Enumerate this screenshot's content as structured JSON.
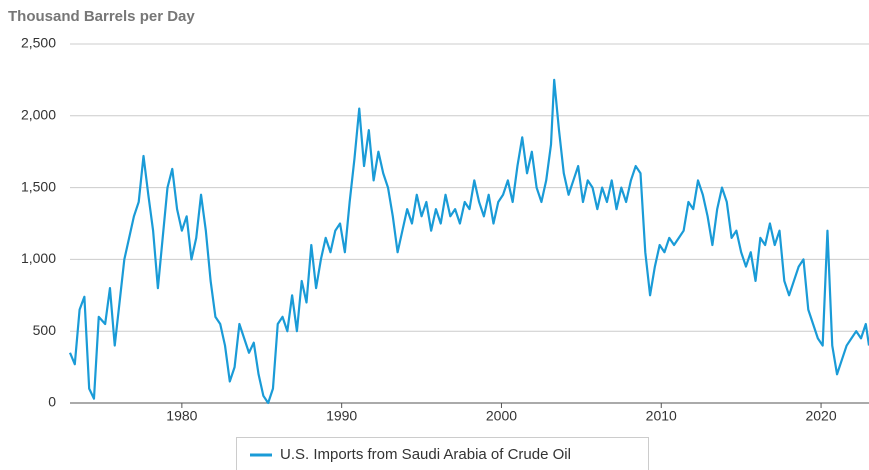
{
  "chart_data": {
    "type": "line",
    "title": "Thousand Barrels per Day",
    "x": [
      1973.0,
      1973.3,
      1973.6,
      1973.9,
      1974.2,
      1974.5,
      1974.8,
      1975.2,
      1975.5,
      1975.8,
      1976.1,
      1976.4,
      1976.7,
      1977.0,
      1977.3,
      1977.6,
      1977.9,
      1978.2,
      1978.5,
      1978.8,
      1979.1,
      1979.4,
      1979.7,
      1980.0,
      1980.3,
      1980.6,
      1980.9,
      1981.2,
      1981.5,
      1981.8,
      1982.1,
      1982.4,
      1982.7,
      1983.0,
      1983.3,
      1983.6,
      1983.9,
      1984.2,
      1984.5,
      1984.8,
      1985.1,
      1985.4,
      1985.7,
      1986.0,
      1986.3,
      1986.6,
      1986.9,
      1987.2,
      1987.5,
      1987.8,
      1988.1,
      1988.4,
      1988.7,
      1989.0,
      1989.3,
      1989.6,
      1989.9,
      1990.2,
      1990.5,
      1990.8,
      1991.1,
      1991.4,
      1991.7,
      1992.0,
      1992.3,
      1992.6,
      1992.9,
      1993.2,
      1993.5,
      1993.8,
      1994.1,
      1994.4,
      1994.7,
      1995.0,
      1995.3,
      1995.6,
      1995.9,
      1996.2,
      1996.5,
      1996.8,
      1997.1,
      1997.4,
      1997.7,
      1998.0,
      1998.3,
      1998.6,
      1998.9,
      1999.2,
      1999.5,
      1999.8,
      2000.1,
      2000.4,
      2000.7,
      2001.0,
      2001.3,
      2001.6,
      2001.9,
      2002.2,
      2002.5,
      2002.8,
      2003.1,
      2003.3,
      2003.6,
      2003.9,
      2004.2,
      2004.5,
      2004.8,
      2005.1,
      2005.4,
      2005.7,
      2006.0,
      2006.3,
      2006.6,
      2006.9,
      2007.2,
      2007.5,
      2007.8,
      2008.1,
      2008.4,
      2008.7,
      2009.0,
      2009.3,
      2009.6,
      2009.9,
      2010.2,
      2010.5,
      2010.8,
      2011.1,
      2011.4,
      2011.7,
      2012.0,
      2012.3,
      2012.6,
      2012.9,
      2013.2,
      2013.5,
      2013.8,
      2014.1,
      2014.4,
      2014.7,
      2015.0,
      2015.3,
      2015.6,
      2015.9,
      2016.2,
      2016.5,
      2016.8,
      2017.1,
      2017.4,
      2017.7,
      2018.0,
      2018.3,
      2018.6,
      2018.9,
      2019.2,
      2019.5,
      2019.8,
      2020.1,
      2020.4,
      2020.7,
      2021.0,
      2021.3,
      2021.6,
      2021.9,
      2022.2,
      2022.5,
      2022.8,
      2023.0
    ],
    "series": [
      {
        "name": "U.S. Imports from Saudi Arabia of Crude Oil",
        "color": "#1a9bd7",
        "values": [
          350,
          270,
          650,
          740,
          100,
          30,
          600,
          550,
          800,
          400,
          700,
          1000,
          1150,
          1300,
          1400,
          1720,
          1450,
          1200,
          800,
          1150,
          1500,
          1630,
          1350,
          1200,
          1300,
          1000,
          1150,
          1450,
          1200,
          850,
          600,
          550,
          400,
          150,
          250,
          550,
          450,
          350,
          420,
          200,
          50,
          0,
          100,
          550,
          600,
          500,
          750,
          500,
          850,
          700,
          1100,
          800,
          1000,
          1150,
          1050,
          1200,
          1250,
          1050,
          1400,
          1700,
          2050,
          1650,
          1900,
          1550,
          1750,
          1600,
          1500,
          1300,
          1050,
          1200,
          1350,
          1250,
          1450,
          1300,
          1400,
          1200,
          1350,
          1250,
          1450,
          1300,
          1350,
          1250,
          1400,
          1350,
          1550,
          1400,
          1300,
          1450,
          1250,
          1400,
          1450,
          1550,
          1400,
          1650,
          1850,
          1600,
          1750,
          1500,
          1400,
          1550,
          1800,
          2250,
          1900,
          1600,
          1450,
          1550,
          1650,
          1400,
          1550,
          1500,
          1350,
          1500,
          1400,
          1550,
          1350,
          1500,
          1400,
          1550,
          1650,
          1600,
          1050,
          750,
          950,
          1100,
          1050,
          1150,
          1100,
          1150,
          1200,
          1400,
          1350,
          1550,
          1450,
          1300,
          1100,
          1350,
          1500,
          1400,
          1150,
          1200,
          1050,
          950,
          1050,
          850,
          1150,
          1100,
          1250,
          1100,
          1200,
          850,
          750,
          850,
          950,
          1000,
          650,
          550,
          450,
          400,
          1200,
          400,
          200,
          300,
          400,
          450,
          500,
          450,
          550,
          400
        ]
      }
    ],
    "xlim": [
      1973,
      2023
    ],
    "xticks": [
      1980,
      1990,
      2000,
      2010,
      2020
    ],
    "ylim": [
      0,
      2500
    ],
    "yticks": [
      0,
      500,
      {
        "value": 1000,
        "label": "1,000"
      },
      {
        "value": 1500,
        "label": "1,500"
      },
      {
        "value": 2000,
        "label": "2,000"
      },
      {
        "value": 2500,
        "label": "2,500"
      }
    ],
    "grid": true,
    "legend": "bottom"
  }
}
